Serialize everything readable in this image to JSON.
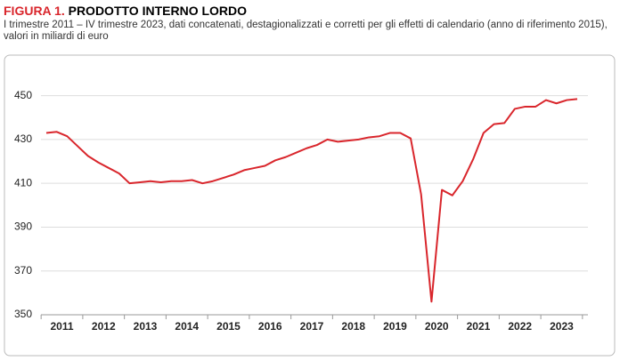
{
  "chart_data": {
    "type": "line",
    "figure_label": "FIGURA 1.",
    "title": "PRODOTTO INTERNO LORDO",
    "subtitle": "I trimestre 2011 – IV trimestre 2023, dati concatenati, destagionalizzati e corretti per gli effetti di calendario (anno di riferimento 2015), valori in miliardi di euro",
    "categories": [
      null,
      "2011",
      null,
      null,
      null,
      "2012",
      null,
      null,
      null,
      "2013",
      null,
      null,
      null,
      "2014",
      null,
      null,
      null,
      "2015",
      null,
      null,
      null,
      "2016",
      null,
      null,
      null,
      "2017",
      null,
      null,
      null,
      "2018",
      null,
      null,
      null,
      "2019",
      null,
      null,
      null,
      "2020",
      null,
      null,
      null,
      "2021",
      null,
      null,
      null,
      "2022",
      null,
      null,
      null,
      "2023",
      null,
      null
    ],
    "values": [
      433,
      433.5,
      431.5,
      427,
      422.5,
      419.5,
      417,
      414.5,
      410,
      410.5,
      411,
      410.5,
      411,
      411,
      411.5,
      410,
      411,
      412.5,
      414,
      416,
      417,
      418,
      420.5,
      422,
      424,
      426,
      427.5,
      430,
      429,
      429.5,
      430,
      431,
      431.5,
      433,
      433,
      430.5,
      405,
      356,
      407,
      404.5,
      411,
      421,
      433,
      437,
      437.5,
      444,
      445,
      445,
      448,
      446.5,
      448,
      448.5
    ],
    "color": "#d9262c",
    "ylim": [
      350,
      460
    ],
    "yticks": [
      350,
      370,
      390,
      410,
      430,
      450
    ],
    "grid": true
  }
}
